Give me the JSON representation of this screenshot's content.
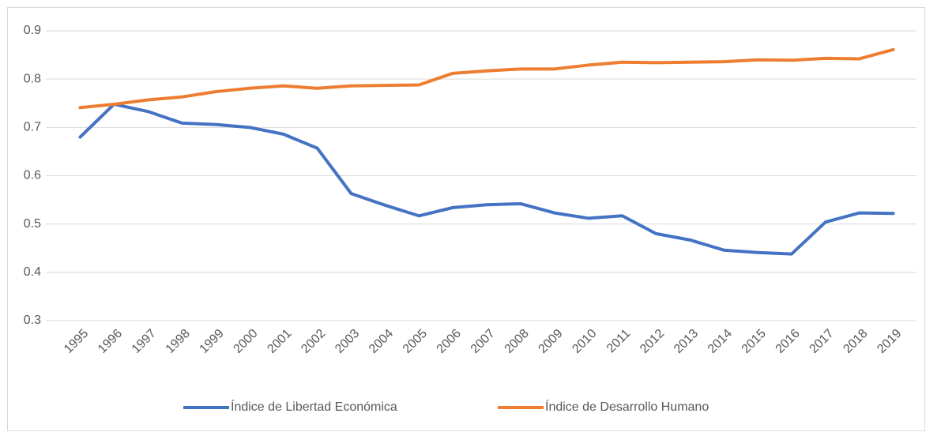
{
  "chart_data": {
    "type": "line",
    "categories": [
      "1995",
      "1996",
      "1997",
      "1998",
      "1999",
      "2000",
      "2001",
      "2002",
      "2003",
      "2004",
      "2005",
      "2006",
      "2007",
      "2008",
      "2009",
      "2010",
      "2011",
      "2012",
      "2013",
      "2014",
      "2015",
      "2016",
      "2017",
      "2018",
      "2019"
    ],
    "series": [
      {
        "name": "Índice de Libertad Económica",
        "color": "#4472c4",
        "values": [
          0.68,
          0.748,
          0.733,
          0.709,
          0.706,
          0.7,
          0.686,
          0.657,
          0.563,
          0.539,
          0.517,
          0.534,
          0.54,
          0.542,
          0.523,
          0.512,
          0.517,
          0.48,
          0.467,
          0.446,
          0.441,
          0.438,
          0.504,
          0.523,
          0.522
        ]
      },
      {
        "name": "Índice de Desarrollo Humano",
        "color": "#ed7d31",
        "values": [
          0.741,
          0.748,
          0.757,
          0.763,
          0.774,
          0.781,
          0.786,
          0.781,
          0.786,
          0.787,
          0.788,
          0.812,
          0.817,
          0.821,
          0.821,
          0.829,
          0.835,
          0.834,
          0.835,
          0.836,
          0.84,
          0.839,
          0.843,
          0.842,
          0.861
        ]
      }
    ],
    "ylim": [
      0.3,
      0.9
    ],
    "yticks": [
      0.3,
      0.4,
      0.5,
      0.6,
      0.7,
      0.8,
      0.9
    ],
    "grid": true,
    "legend": "bottom"
  }
}
